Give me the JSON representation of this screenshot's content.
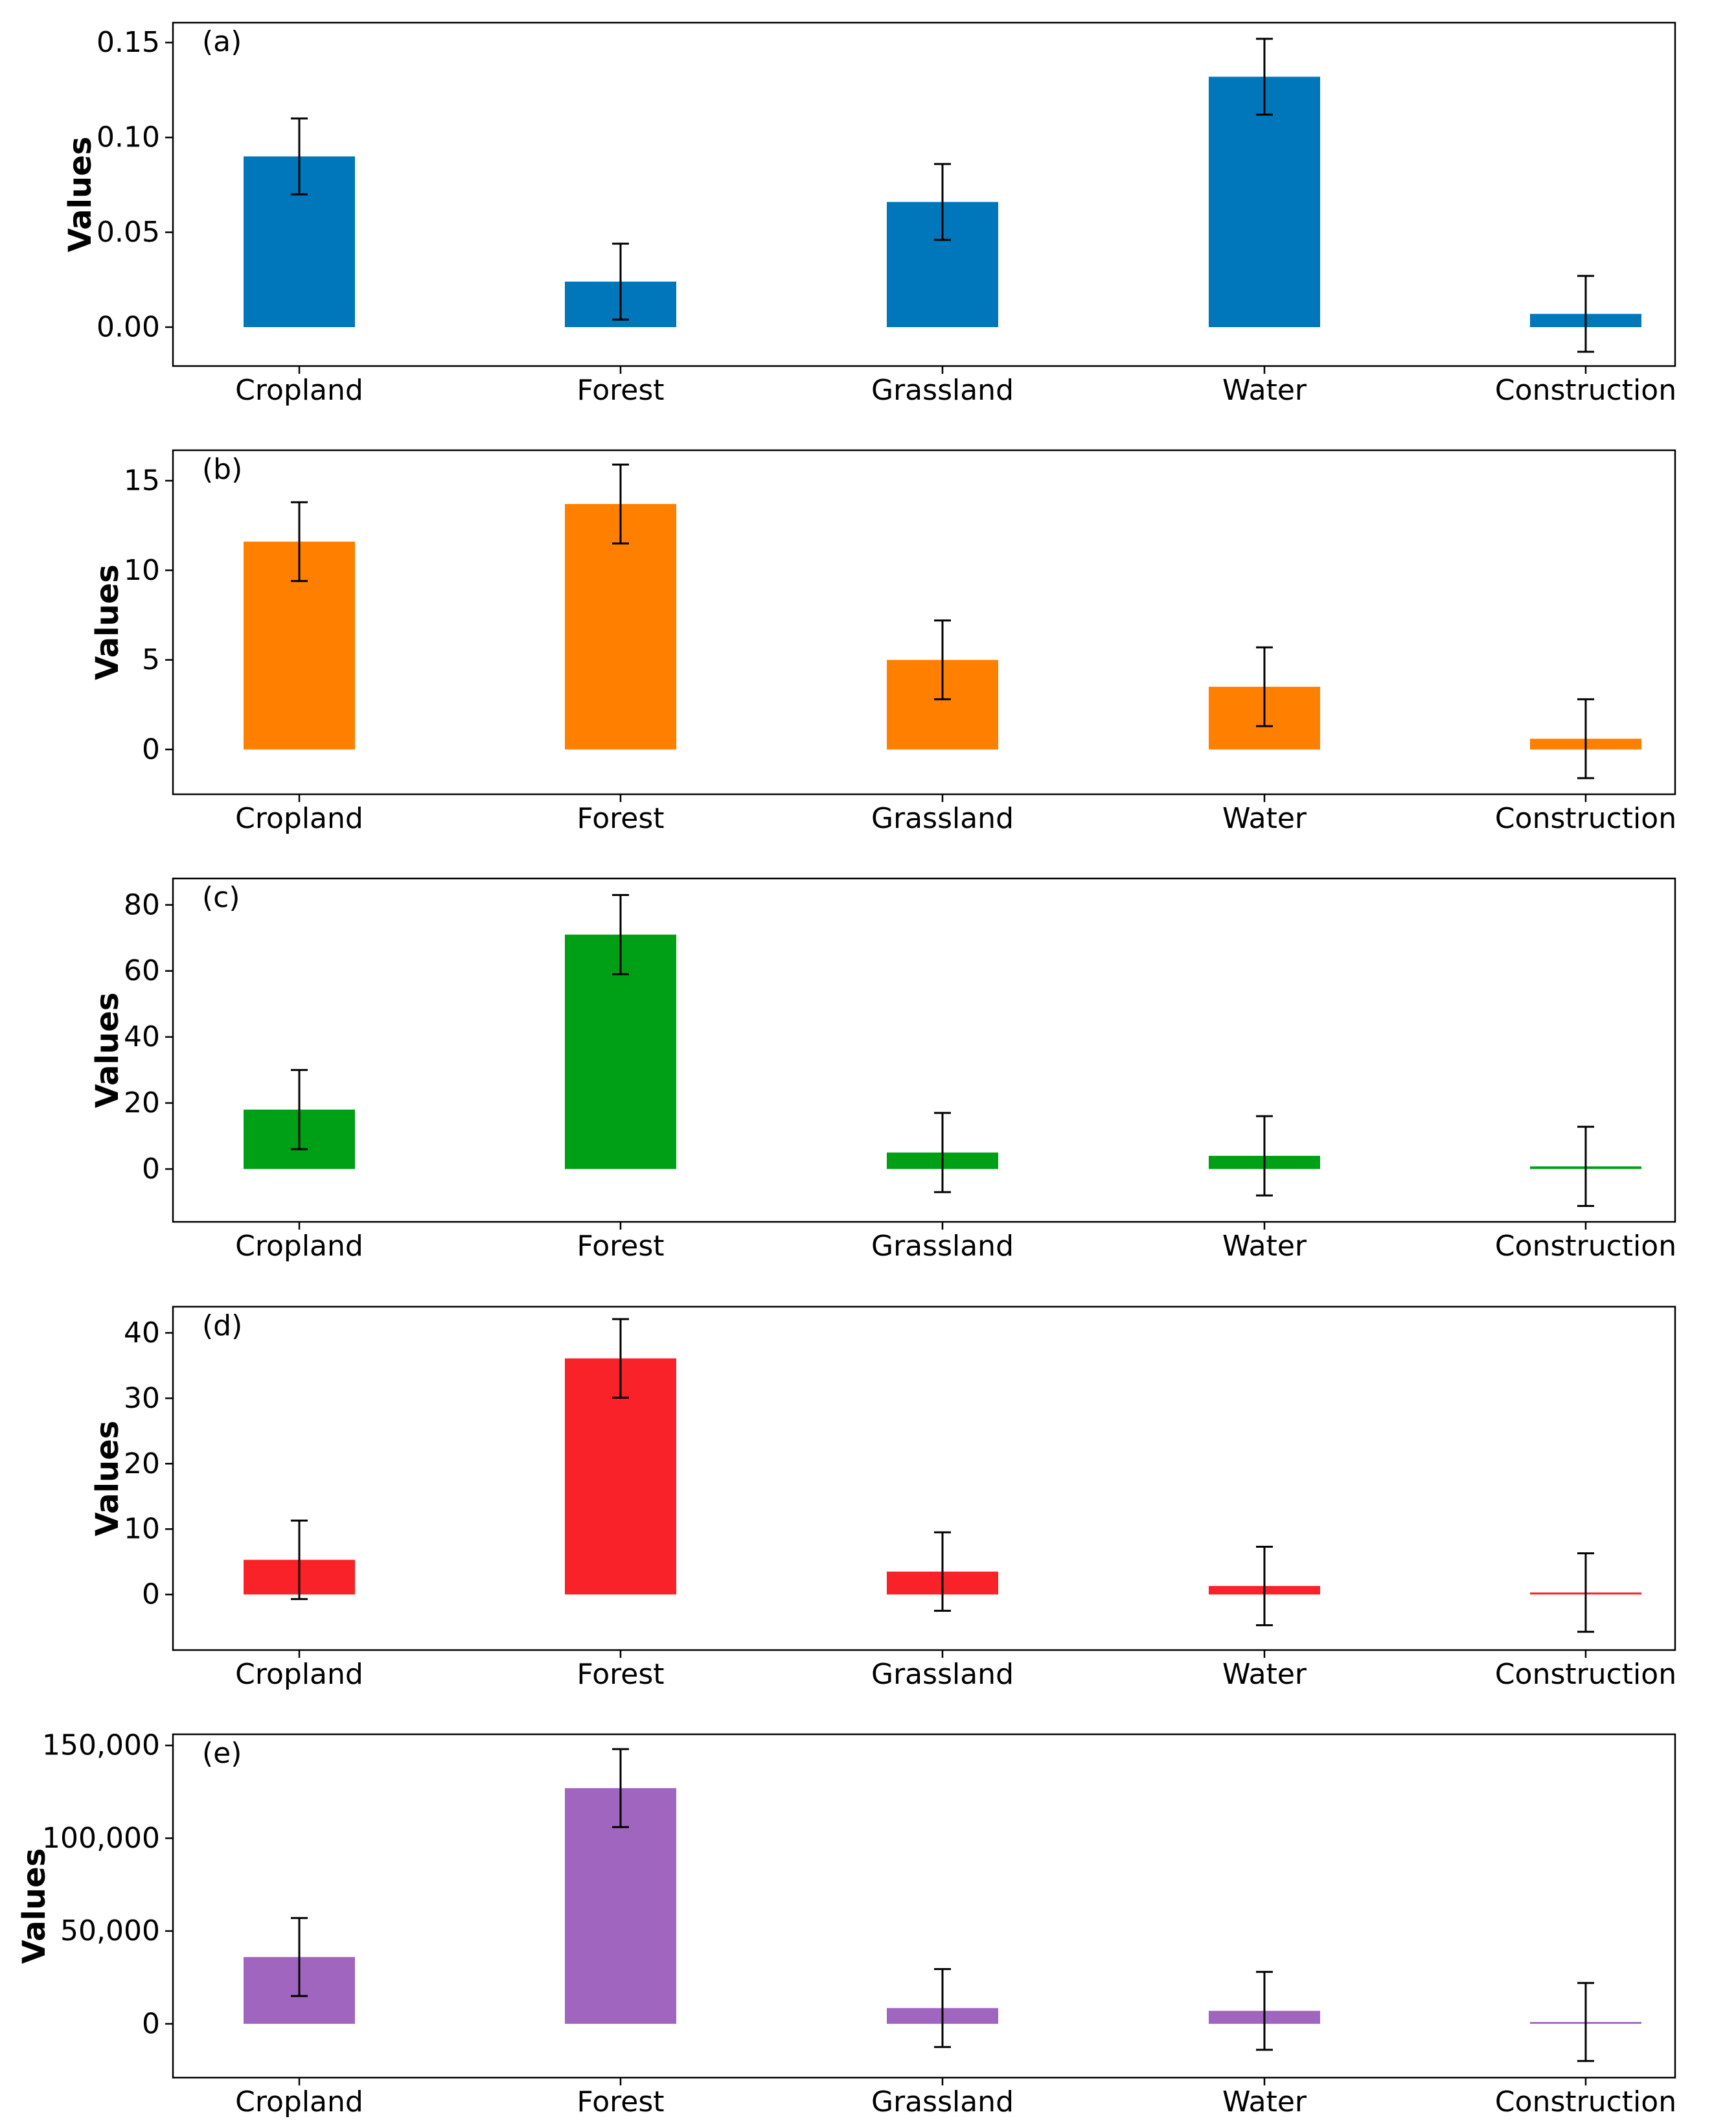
{
  "chart_data": [
    {
      "type": "bar",
      "panel_label": "(a)",
      "ylabel": "Values",
      "categories": [
        "Cropland",
        "Forest",
        "Grassland",
        "Water",
        "Construction"
      ],
      "values": [
        0.09,
        0.024,
        0.066,
        0.132,
        0.007
      ],
      "errors": [
        0.02,
        0.02,
        0.02,
        0.02,
        0.02
      ],
      "ylim": [
        -0.0205,
        0.1605
      ],
      "yticks": [
        0,
        0.05,
        0.1,
        0.15
      ],
      "ytick_labels": [
        "0.00",
        "0.05",
        "0.10",
        "0.15"
      ],
      "color": "#0077bb"
    },
    {
      "type": "bar",
      "panel_label": "(b)",
      "ylabel": "Values",
      "categories": [
        "Cropland",
        "Forest",
        "Grassland",
        "Water",
        "Construction"
      ],
      "values": [
        11.6,
        13.7,
        5.0,
        3.5,
        0.6
      ],
      "errors": [
        2.2,
        2.2,
        2.2,
        2.2,
        2.2
      ],
      "ylim": [
        -2.5,
        16.7
      ],
      "yticks": [
        0,
        5,
        10,
        15
      ],
      "ytick_labels": [
        "0",
        "5",
        "10",
        "15"
      ],
      "color": "#ff8000"
    },
    {
      "type": "bar",
      "panel_label": "(c)",
      "ylabel": "Values",
      "categories": [
        "Cropland",
        "Forest",
        "Grassland",
        "Water",
        "Construction"
      ],
      "values": [
        18,
        71,
        5,
        4,
        0.8
      ],
      "errors": [
        12,
        12,
        12,
        12,
        12
      ],
      "ylim": [
        -16,
        88
      ],
      "yticks": [
        0,
        20,
        40,
        60,
        80
      ],
      "ytick_labels": [
        "0",
        "20",
        "40",
        "60",
        "80"
      ],
      "color": "#00a016"
    },
    {
      "type": "bar",
      "panel_label": "(d)",
      "ylabel": "Values",
      "categories": [
        "Cropland",
        "Forest",
        "Grassland",
        "Water",
        "Construction"
      ],
      "values": [
        5.3,
        36.1,
        3.5,
        1.3,
        0.3
      ],
      "errors": [
        6.0,
        6.0,
        6.0,
        6.0,
        6.0
      ],
      "ylim": [
        -8.5,
        44.0
      ],
      "yticks": [
        0,
        10,
        20,
        30,
        40
      ],
      "ytick_labels": [
        "0",
        "10",
        "20",
        "30",
        "40"
      ],
      "color": "#f92228"
    },
    {
      "type": "bar",
      "panel_label": "(e)",
      "ylabel": "Values",
      "categories": [
        "Cropland",
        "Forest",
        "Grassland",
        "Water",
        "Construction"
      ],
      "values": [
        36000,
        127000,
        8500,
        7000,
        1000
      ],
      "errors": [
        21000,
        21000,
        21000,
        21000,
        21000
      ],
      "ylim": [
        -29000,
        156000
      ],
      "yticks": [
        0,
        50000,
        100000,
        150000
      ],
      "ytick_labels": [
        "0",
        "50,000",
        "100,000",
        "150,000"
      ],
      "color": "#a066bf"
    }
  ]
}
